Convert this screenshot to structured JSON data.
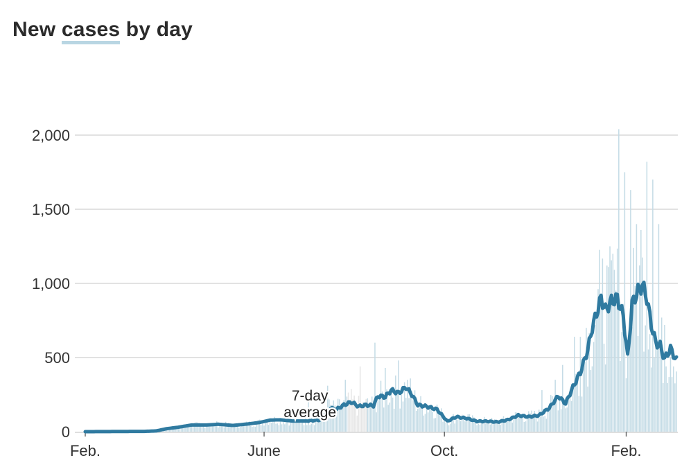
{
  "title": {
    "prefix": "New ",
    "highlight": "cases",
    "suffix": " by day"
  },
  "colors": {
    "bars": "#c5dce6",
    "bars_highlight": "#e6e6e6",
    "line": "#2f7aa0",
    "grid": "#d0d0d0"
  },
  "chart_data": {
    "type": "bar",
    "title": "New cases by day",
    "xlabel": "",
    "ylabel": "",
    "ylim": [
      0,
      2000
    ],
    "grid": true,
    "y_ticks": [
      0,
      500,
      1000,
      1500,
      2000
    ],
    "y_tick_labels": [
      "0",
      "500",
      "1,000",
      "1,500",
      "2,000"
    ],
    "x_ticks": [
      {
        "label": "Feb.",
        "day": 0
      },
      {
        "label": "June",
        "day": 121
      },
      {
        "label": "Oct.",
        "day": 243
      },
      {
        "label": "Feb.",
        "day": 366
      }
    ],
    "start_date": "Feb. 1",
    "num_days": 367,
    "annotation": {
      "line1": "7-day",
      "line2": "average",
      "day": 152,
      "value": 70
    },
    "highlight_range": [
      178,
      190
    ],
    "series": [
      {
        "name": "7-day average",
        "kind": "line",
        "keypoints": [
          [
            0,
            0
          ],
          [
            40,
            2
          ],
          [
            48,
            5
          ],
          [
            55,
            20
          ],
          [
            63,
            30
          ],
          [
            72,
            45
          ],
          [
            82,
            45
          ],
          [
            90,
            50
          ],
          [
            100,
            42
          ],
          [
            110,
            52
          ],
          [
            118,
            62
          ],
          [
            125,
            78
          ],
          [
            132,
            80
          ],
          [
            140,
            72
          ],
          [
            150,
            72
          ],
          [
            160,
            80
          ],
          [
            165,
            160
          ],
          [
            170,
            150
          ],
          [
            175,
            180
          ],
          [
            180,
            200
          ],
          [
            185,
            170
          ],
          [
            190,
            180
          ],
          [
            195,
            175
          ],
          [
            198,
            240
          ],
          [
            203,
            235
          ],
          [
            207,
            280
          ],
          [
            212,
            260
          ],
          [
            217,
            300
          ],
          [
            221,
            250
          ],
          [
            225,
            180
          ],
          [
            231,
            170
          ],
          [
            238,
            150
          ],
          [
            245,
            70
          ],
          [
            251,
            100
          ],
          [
            258,
            90
          ],
          [
            265,
            70
          ],
          [
            272,
            70
          ],
          [
            279,
            65
          ],
          [
            286,
            80
          ],
          [
            293,
            110
          ],
          [
            300,
            100
          ],
          [
            307,
            110
          ],
          [
            314,
            160
          ],
          [
            320,
            240
          ],
          [
            325,
            190
          ],
          [
            330,
            300
          ],
          [
            335,
            400
          ],
          [
            340,
            550
          ],
          [
            343,
            700
          ],
          [
            346,
            800
          ],
          [
            349,
            900
          ],
          [
            352,
            820
          ],
          [
            356,
            880
          ],
          [
            360,
            900
          ],
          [
            364,
            780
          ],
          [
            367,
            500
          ],
          [
            370,
            860
          ],
          [
            374,
            950
          ],
          [
            377,
            990
          ],
          [
            380,
            900
          ],
          [
            383,
            720
          ],
          [
            386,
            600
          ],
          [
            389,
            580
          ],
          [
            392,
            490
          ],
          [
            396,
            560
          ],
          [
            400,
            480
          ]
        ]
      },
      {
        "name": "Daily cases",
        "kind": "bars",
        "spikes": [
          [
            151,
            200
          ],
          [
            164,
            310
          ],
          [
            176,
            350
          ],
          [
            186,
            440
          ],
          [
            196,
            600
          ],
          [
            203,
            430
          ],
          [
            212,
            480
          ],
          [
            309,
            280
          ],
          [
            318,
            350
          ],
          [
            323,
            450
          ],
          [
            331,
            640
          ],
          [
            335,
            640
          ],
          [
            339,
            700
          ],
          [
            346,
            800
          ],
          [
            349,
            890
          ],
          [
            353,
            1120
          ],
          [
            357,
            1200
          ],
          [
            361,
            2040
          ],
          [
            365,
            1750
          ],
          [
            369,
            1630
          ],
          [
            373,
            1400
          ],
          [
            376,
            1360
          ],
          [
            380,
            1820
          ],
          [
            384,
            1700
          ],
          [
            388,
            1400
          ],
          [
            392,
            720
          ],
          [
            396,
            500
          ]
        ]
      }
    ]
  }
}
